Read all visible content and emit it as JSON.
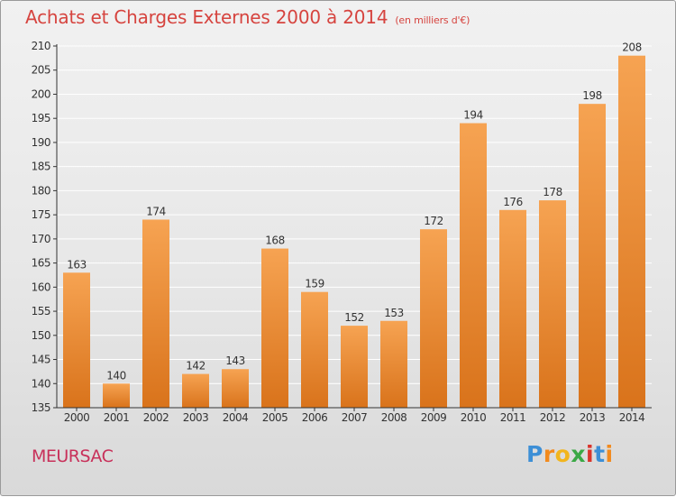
{
  "title": "Achats et Charges Externes 2000 à 2014",
  "subtitle": "(en milliers d'€)",
  "commune": "MEURSAC",
  "logo": {
    "letters": [
      "P",
      "r",
      "o",
      "x",
      "i",
      "t",
      "i"
    ],
    "colors": [
      "#3d8fd6",
      "#f28a1d",
      "#f2b51d",
      "#3aa845",
      "#d9342b",
      "#3d8fd6",
      "#f28a1d"
    ]
  },
  "colors": {
    "bar_top": "#f6a352",
    "bar_bottom": "#d9731b",
    "axis": "#333333",
    "grid": "#ffffff",
    "label": "#333333"
  },
  "chart_data": {
    "type": "bar",
    "title": "Achats et Charges Externes 2000 à 2014",
    "categories": [
      "2000",
      "2001",
      "2002",
      "2003",
      "2004",
      "2005",
      "2006",
      "2007",
      "2008",
      "2009",
      "2010",
      "2011",
      "2012",
      "2013",
      "2014"
    ],
    "values": [
      163,
      140,
      174,
      142,
      143,
      168,
      159,
      152,
      153,
      172,
      194,
      176,
      178,
      198,
      208
    ],
    "ylim": [
      135,
      210
    ],
    "yticks": [
      135,
      140,
      145,
      150,
      155,
      160,
      165,
      170,
      175,
      180,
      185,
      190,
      195,
      200,
      205,
      210
    ],
    "grid": true,
    "data_labels": true
  }
}
